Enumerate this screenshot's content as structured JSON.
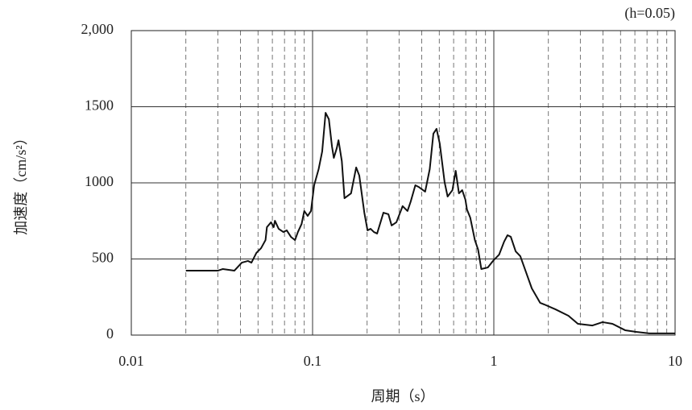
{
  "chart_data": {
    "type": "line",
    "annotation": "(h=0.05)",
    "x_label": "周期（s）",
    "y_label": "加速度（cm/s²）",
    "x_scale": "log",
    "xlim": [
      0.01,
      10
    ],
    "xticks": [
      0.01,
      0.1,
      1,
      10
    ],
    "xminorticks": [
      0.02,
      0.03,
      0.04,
      0.05,
      0.06,
      0.07,
      0.08,
      0.09,
      0.2,
      0.3,
      0.4,
      0.5,
      0.6,
      0.7,
      0.8,
      0.9,
      2,
      3,
      4,
      5,
      6,
      7,
      8,
      9
    ],
    "ylim": [
      0,
      2000
    ],
    "yticks": [
      0,
      500,
      1000,
      1500,
      {
        "value": 2000,
        "label": "2,000"
      }
    ],
    "grid": true,
    "color": "#111111",
    "x": [
      0.02,
      0.03,
      0.032,
      0.037,
      0.0407,
      0.044,
      0.046,
      0.049,
      0.052,
      0.055,
      0.056,
      0.059,
      0.061,
      0.062,
      0.065,
      0.069,
      0.072,
      0.076,
      0.08,
      0.083,
      0.087,
      0.09,
      0.094,
      0.098,
      0.102,
      0.108,
      0.113,
      0.118,
      0.123,
      0.128,
      0.131,
      0.136,
      0.139,
      0.145,
      0.15,
      0.163,
      0.174,
      0.181,
      0.193,
      0.201,
      0.209,
      0.218,
      0.227,
      0.246,
      0.262,
      0.273,
      0.29,
      0.314,
      0.334,
      0.348,
      0.369,
      0.385,
      0.418,
      0.443,
      0.464,
      0.483,
      0.503,
      0.535,
      0.556,
      0.591,
      0.616,
      0.642,
      0.669,
      0.697,
      0.711,
      0.741,
      0.786,
      0.819,
      0.853,
      0.926,
      0.989,
      1.07,
      1.14,
      1.19,
      1.24,
      1.32,
      1.4,
      1.62,
      1.8,
      1.9,
      2.19,
      2.58,
      2.91,
      3.5,
      3.98,
      4.51,
      5.3,
      6.1,
      7.2,
      10
    ],
    "values": [
      423,
      423,
      434,
      423,
      476,
      487,
      476,
      540,
      571,
      624,
      709,
      741,
      709,
      751,
      698,
      677,
      688,
      645,
      624,
      677,
      730,
      815,
      783,
      815,
      984,
      1090,
      1206,
      1460,
      1418,
      1238,
      1164,
      1228,
      1280,
      1143,
      899,
      931,
      1101,
      1048,
      804,
      688,
      698,
      677,
      667,
      804,
      794,
      720,
      741,
      847,
      815,
      878,
      984,
      973,
      942,
      1090,
      1323,
      1355,
      1259,
      1005,
      910,
      952,
      1079,
      931,
      952,
      889,
      825,
      772,
      624,
      561,
      434,
      444,
      487,
      529,
      614,
      656,
      646,
      550,
      518,
      307,
      212,
      201,
      169,
      127,
      74,
      63,
      85,
      74,
      32,
      21,
      11,
      11
    ]
  }
}
